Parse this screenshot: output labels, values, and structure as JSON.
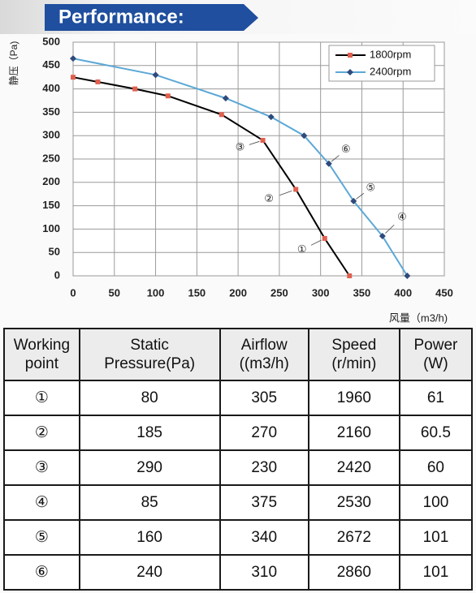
{
  "header": {
    "title": "Performance:"
  },
  "chart_data": {
    "type": "line",
    "x_label": "风量（m3/h)",
    "y_label": "静压（Pa)",
    "xlim": [
      0,
      450
    ],
    "xticks": [
      0,
      50,
      100,
      150,
      200,
      250,
      300,
      350,
      400,
      450
    ],
    "ylim": [
      0,
      500
    ],
    "yticks": [
      0,
      50,
      100,
      150,
      200,
      250,
      300,
      350,
      400,
      450,
      500
    ],
    "grid": true,
    "legend": "top-right",
    "series": [
      {
        "name": "1800rpm",
        "color": "#000000",
        "marker_color": "#e0604f",
        "marker": "square",
        "x": [
          0,
          30,
          75,
          115,
          180,
          230,
          270,
          305,
          335
        ],
        "values": [
          425,
          415,
          400,
          385,
          345,
          290,
          185,
          80,
          0
        ]
      },
      {
        "name": "2400rpm",
        "color": "#5ba8d6",
        "marker_color": "#2f4a7a",
        "marker": "diamond",
        "x": [
          0,
          100,
          185,
          240,
          280,
          310,
          340,
          375,
          405
        ],
        "values": [
          465,
          430,
          380,
          340,
          300,
          240,
          160,
          85,
          0
        ]
      }
    ],
    "annotations": [
      {
        "text": "①",
        "x": 305,
        "y": 80
      },
      {
        "text": "②",
        "x": 270,
        "y": 185
      },
      {
        "text": "③",
        "x": 230,
        "y": 290
      },
      {
        "text": "④",
        "x": 375,
        "y": 85
      },
      {
        "text": "⑤",
        "x": 340,
        "y": 160
      },
      {
        "text": "⑥",
        "x": 310,
        "y": 240
      }
    ]
  },
  "table": {
    "headers": [
      "Working\npoint",
      "Static\nPressure(Pa)",
      "Airflow\n((m3/h)",
      "Speed\n(r/min)",
      "Power\n(W)"
    ],
    "rows": [
      [
        "①",
        "80",
        "305",
        "1960",
        "61"
      ],
      [
        "②",
        "185",
        "270",
        "2160",
        "60.5"
      ],
      [
        "③",
        "290",
        "230",
        "2420",
        "60"
      ],
      [
        "④",
        "85",
        "375",
        "2530",
        "100"
      ],
      [
        "⑤",
        "160",
        "340",
        "2672",
        "101"
      ],
      [
        "⑥",
        "240",
        "310",
        "2860",
        "101"
      ]
    ]
  }
}
